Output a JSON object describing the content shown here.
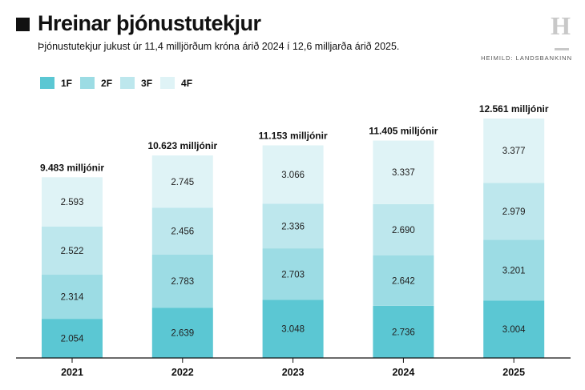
{
  "header": {
    "title": "Hreinar þjónustutekjur",
    "subtitle": "Þjónustutekjur jukust úr 11,4 milljörðum króna árið 2024 í 12,6 milljarða árið 2025.",
    "source": "HEIMILD: LANDSBANKINN",
    "logo": "H"
  },
  "chart_data": {
    "type": "bar",
    "stacked": true,
    "title": "Hreinar þjónustutekjur",
    "categories": [
      "2021",
      "2022",
      "2023",
      "2024",
      "2025"
    ],
    "series": [
      {
        "name": "1F",
        "color": "#5bc7d3",
        "values": [
          2054,
          2639,
          3048,
          2736,
          3004
        ],
        "labels": [
          "2.054",
          "2.639",
          "3.048",
          "2.736",
          "3.004"
        ]
      },
      {
        "name": "2F",
        "color": "#9cdce4",
        "values": [
          2314,
          2783,
          2703,
          2642,
          3201
        ],
        "labels": [
          "2.314",
          "2.783",
          "2.703",
          "2.642",
          "3.201"
        ]
      },
      {
        "name": "3F",
        "color": "#bde7ed",
        "values": [
          2522,
          2456,
          2336,
          2690,
          2979
        ],
        "labels": [
          "2.522",
          "2.456",
          "2.336",
          "2.690",
          "2.979"
        ]
      },
      {
        "name": "4F",
        "color": "#dff3f6",
        "values": [
          2593,
          2745,
          3066,
          3337,
          3377
        ],
        "labels": [
          "2.593",
          "2.745",
          "3.066",
          "3.337",
          "3.377"
        ]
      }
    ],
    "totals": [
      "9.483 milljónir",
      "10.623 milljónir",
      "11.153 milljónir",
      "11.405 milljónir",
      "12.561 milljónir"
    ],
    "legend": "top-left",
    "ylim": [
      0,
      12561
    ]
  }
}
